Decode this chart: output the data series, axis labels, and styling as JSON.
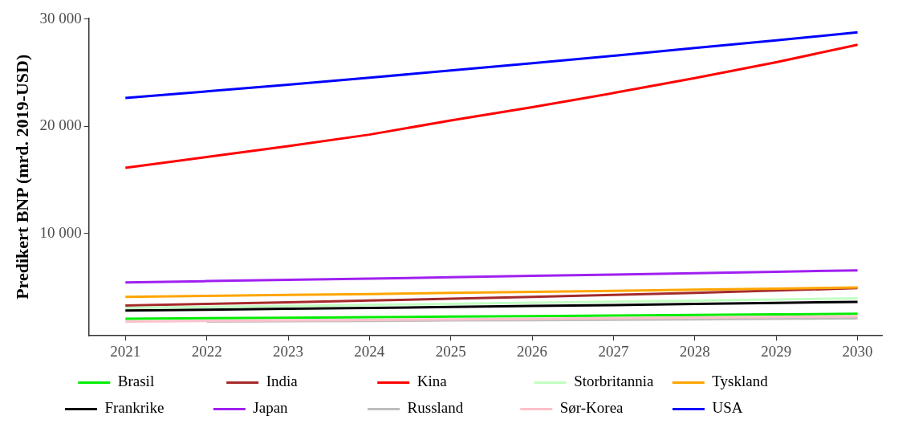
{
  "chart_data": {
    "type": "line",
    "ylabel": "Predikert BNP (mrd. 2019-USD)",
    "x": [
      2021,
      2022,
      2023,
      2024,
      2025,
      2026,
      2027,
      2028,
      2029,
      2030
    ],
    "xlim": [
      2020.55,
      2030.3
    ],
    "xticks": [
      2021,
      2022,
      2023,
      2024,
      2025,
      2026,
      2027,
      2028,
      2029,
      2030
    ],
    "ylim": [
      450,
      30100
    ],
    "yticks": [
      {
        "value": 10000,
        "label": "10 000"
      },
      {
        "value": 20000,
        "label": "20 000"
      },
      {
        "value": 30000,
        "label": "30 000"
      }
    ],
    "grid": false,
    "legend": "bottom",
    "marker": "none",
    "line_style": "solid",
    "series": [
      {
        "name": "Brasil",
        "color": "#00ee00",
        "values": [
          2040,
          2090,
          2140,
          2190,
          2240,
          2290,
          2340,
          2390,
          2450,
          2500
        ]
      },
      {
        "name": "Frankrike",
        "color": "#000000",
        "values": [
          2810,
          2890,
          2970,
          3050,
          3140,
          3230,
          3320,
          3420,
          3520,
          3620
        ]
      },
      {
        "name": "India",
        "color": "#a52a2a",
        "values": [
          3280,
          3430,
          3580,
          3740,
          3910,
          4080,
          4260,
          4450,
          4670,
          4900
        ]
      },
      {
        "name": "Japan",
        "color": "#a020f0",
        "values": [
          5430,
          5550,
          5670,
          5790,
          5910,
          6040,
          6160,
          6290,
          6420,
          6560
        ]
      },
      {
        "name": "Kina",
        "color": "#ff0000",
        "values": [
          16120,
          17130,
          18140,
          19220,
          20540,
          21780,
          23100,
          24500,
          25970,
          27600
        ]
      },
      {
        "name": "Russland",
        "color": "#bebebe",
        "values": [
          null,
          1780,
          1810,
          1840,
          1880,
          1910,
          1950,
          1990,
          2030,
          2070
        ]
      },
      {
        "name": "Storbritannia",
        "color": "#c1ffc1",
        "values": [
          3050,
          3140,
          3230,
          3330,
          3430,
          3530,
          3630,
          3730,
          3840,
          3950
        ]
      },
      {
        "name": "Sør-Korea",
        "color": "#ffc0cb",
        "values": [
          1780,
          1830,
          1880,
          1930,
          1990,
          2040,
          2100,
          2150,
          2210,
          2270
        ]
      },
      {
        "name": "Tyskland",
        "color": "#ffa500",
        "values": [
          4080,
          4170,
          4260,
          4350,
          4450,
          4550,
          4650,
          4750,
          4850,
          4960
        ]
      },
      {
        "name": "USA",
        "color": "#0000ff",
        "values": [
          22640,
          23250,
          23880,
          24530,
          25200,
          25880,
          26580,
          27300,
          28020,
          28760
        ]
      }
    ]
  }
}
